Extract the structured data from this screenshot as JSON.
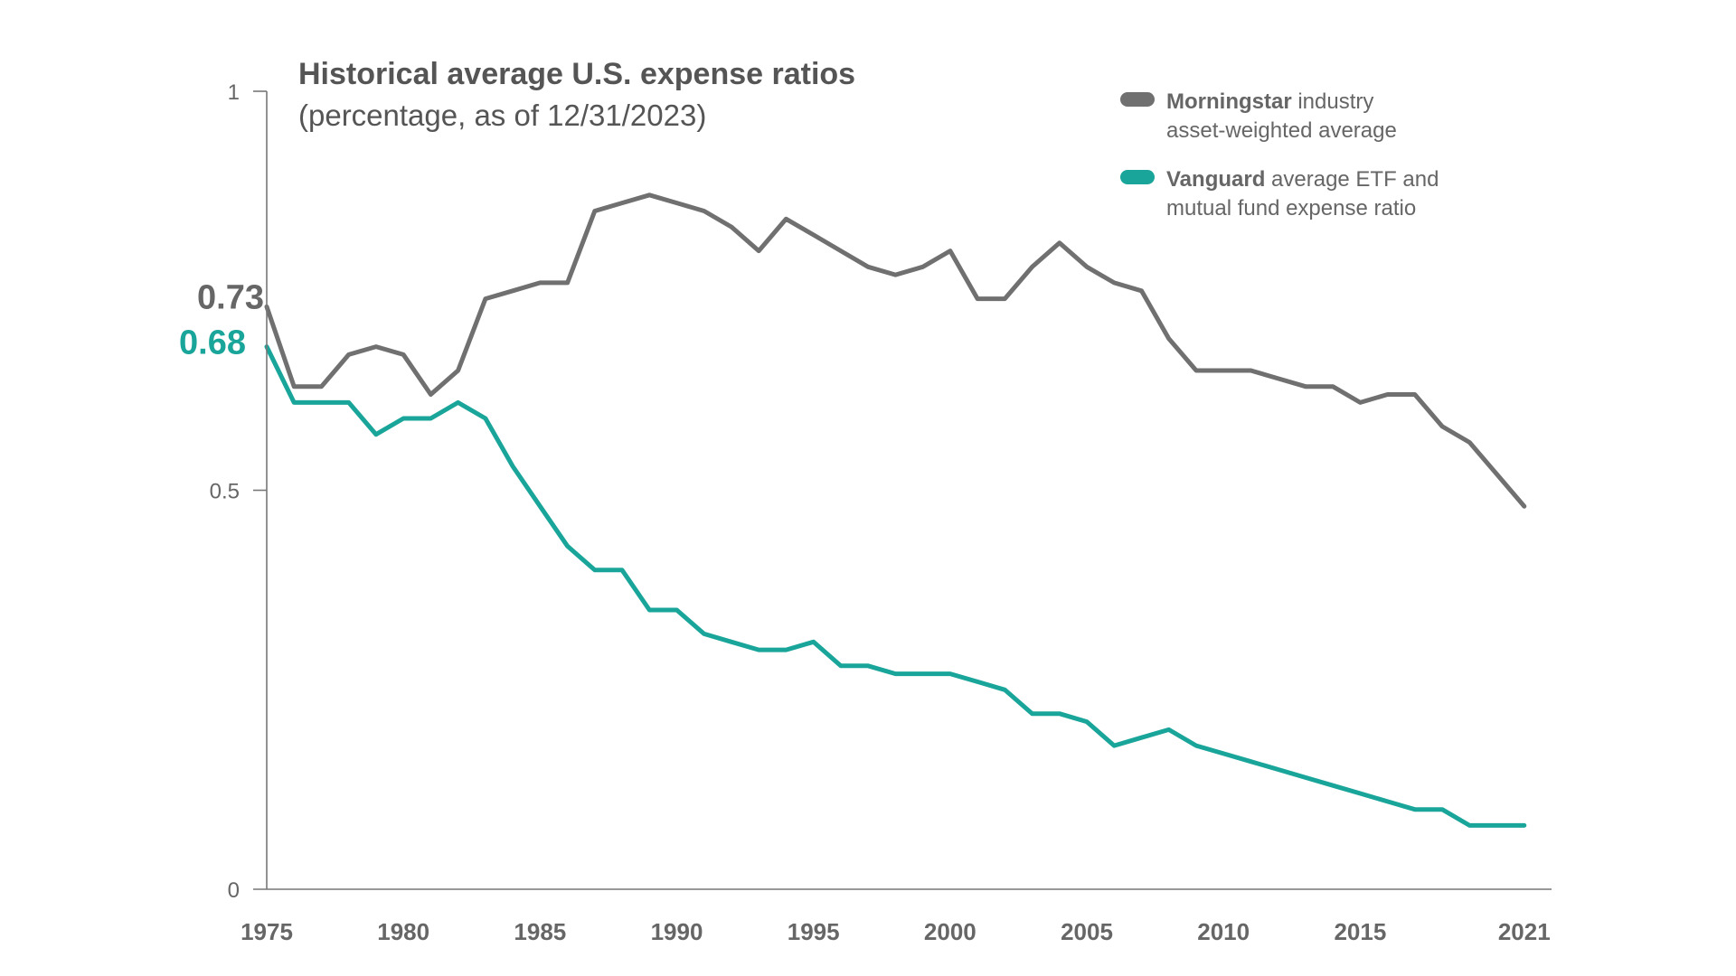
{
  "chart_data": {
    "type": "line",
    "title": "Historical average U.S. expense ratios",
    "subtitle": "(percentage, as of 12/31/2023)",
    "xlabel": "",
    "ylabel": "",
    "xlim": [
      1975,
      2022
    ],
    "ylim": [
      0,
      1
    ],
    "y_ticks": [
      {
        "value": 0,
        "label": "0"
      },
      {
        "value": 0.5,
        "label": "0.5"
      },
      {
        "value": 1,
        "label": "1"
      }
    ],
    "x_ticks": [
      {
        "value": 1975,
        "label": "1975"
      },
      {
        "value": 1980,
        "label": "1980"
      },
      {
        "value": 1985,
        "label": "1985"
      },
      {
        "value": 1990,
        "label": "1990"
      },
      {
        "value": 1995,
        "label": "1995"
      },
      {
        "value": 2000,
        "label": "2000"
      },
      {
        "value": 2005,
        "label": "2005"
      },
      {
        "value": 2010,
        "label": "2010"
      },
      {
        "value": 2015,
        "label": "2015"
      },
      {
        "value": 2021,
        "label": "2021"
      }
    ],
    "start_labels": [
      {
        "value": 0.73,
        "label": "0.73",
        "color": "#666666"
      },
      {
        "value": 0.68,
        "label": "0.68",
        "color": "#1aa59a"
      }
    ],
    "legend": [
      {
        "bold": "Morningstar",
        "rest": " industry",
        "line2": "asset-weighted average",
        "color": "#707070"
      },
      {
        "bold": "Vanguard",
        "rest": " average ETF and",
        "line2": "mutual fund expense ratio",
        "color": "#1aa59a"
      }
    ],
    "x": [
      1975,
      1976,
      1977,
      1978,
      1979,
      1980,
      1981,
      1982,
      1983,
      1984,
      1985,
      1986,
      1987,
      1988,
      1989,
      1990,
      1991,
      1992,
      1993,
      1994,
      1995,
      1996,
      1997,
      1998,
      1999,
      2000,
      2001,
      2002,
      2003,
      2004,
      2005,
      2006,
      2007,
      2008,
      2009,
      2010,
      2011,
      2012,
      2013,
      2014,
      2015,
      2016,
      2017,
      2018,
      2019,
      2020,
      2021
    ],
    "series": [
      {
        "name": "Morningstar industry asset-weighted average",
        "color": "#707070",
        "values": [
          0.73,
          0.63,
          0.63,
          0.67,
          0.68,
          0.67,
          0.62,
          0.65,
          0.74,
          0.75,
          0.76,
          0.76,
          0.85,
          0.86,
          0.87,
          0.86,
          0.85,
          0.83,
          0.8,
          0.84,
          0.82,
          0.8,
          0.78,
          0.77,
          0.78,
          0.8,
          0.74,
          0.74,
          0.78,
          0.81,
          0.78,
          0.76,
          0.75,
          0.69,
          0.65,
          0.65,
          0.65,
          0.64,
          0.63,
          0.63,
          0.61,
          0.62,
          0.62,
          0.58,
          0.56,
          0.52,
          0.48
        ]
      },
      {
        "name": "Vanguard average ETF and mutual fund expense ratio",
        "color": "#1aa59a",
        "values": [
          0.68,
          0.61,
          0.61,
          0.61,
          0.57,
          0.59,
          0.59,
          0.61,
          0.59,
          0.53,
          0.48,
          0.43,
          0.4,
          0.4,
          0.35,
          0.35,
          0.32,
          0.31,
          0.3,
          0.3,
          0.31,
          0.28,
          0.28,
          0.27,
          0.27,
          0.27,
          0.26,
          0.25,
          0.22,
          0.22,
          0.21,
          0.18,
          0.19,
          0.2,
          0.18,
          0.17,
          0.16,
          0.15,
          0.14,
          0.13,
          0.12,
          0.11,
          0.1,
          0.1,
          0.08,
          0.08,
          0.08
        ]
      }
    ]
  }
}
